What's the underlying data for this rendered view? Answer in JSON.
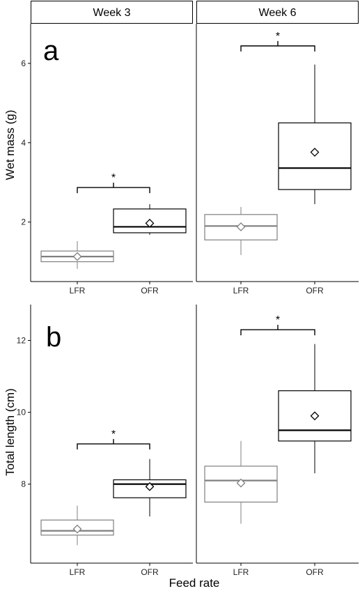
{
  "chart_data": [
    {
      "type": "box",
      "panel_label": "a",
      "ylabel": "Wet mass (g)",
      "xlabel": "",
      "ylim": [
        0.5,
        7.0
      ],
      "yticks": [
        2,
        4,
        6
      ],
      "facets": [
        {
          "strip": "Week 3",
          "categories": [
            "LFR",
            "OFR"
          ],
          "boxes": [
            {
              "category": "LFR",
              "color": "#7f7f7f",
              "min": 0.82,
              "q1": 1.0,
              "median": 1.13,
              "q3": 1.27,
              "max": 1.52,
              "mean": 1.13
            },
            {
              "category": "OFR",
              "color": "#000000",
              "min": 1.68,
              "q1": 1.73,
              "median": 1.88,
              "q3": 2.33,
              "max": 2.45,
              "mean": 1.97
            }
          ],
          "significance": {
            "label": "*",
            "y": 2.87
          }
        },
        {
          "strip": "Week 6",
          "categories": [
            "LFR",
            "OFR"
          ],
          "boxes": [
            {
              "category": "LFR",
              "color": "#7f7f7f",
              "min": 1.17,
              "q1": 1.55,
              "median": 1.9,
              "q3": 2.19,
              "max": 2.38,
              "mean": 1.88
            },
            {
              "category": "OFR",
              "color": "#000000",
              "min": 2.45,
              "q1": 2.82,
              "median": 3.36,
              "q3": 4.5,
              "max": 5.97,
              "mean": 3.76
            }
          ],
          "significance": {
            "label": "*",
            "y": 6.44
          }
        }
      ]
    },
    {
      "type": "box",
      "panel_label": "b",
      "ylabel": "Total length (cm)",
      "xlabel": "Feed rate",
      "ylim": [
        5.8,
        13.0
      ],
      "yticks": [
        8,
        10,
        12
      ],
      "facets": [
        {
          "strip": "",
          "categories": [
            "LFR",
            "OFR"
          ],
          "boxes": [
            {
              "category": "LFR",
              "color": "#7f7f7f",
              "min": 6.3,
              "q1": 6.58,
              "median": 6.7,
              "q3": 7.0,
              "max": 7.4,
              "mean": 6.75
            },
            {
              "category": "OFR",
              "color": "#000000",
              "min": 7.1,
              "q1": 7.62,
              "median": 8.0,
              "q3": 8.12,
              "max": 8.7,
              "mean": 7.93
            }
          ],
          "significance": {
            "label": "*",
            "y": 9.12
          }
        },
        {
          "strip": "",
          "categories": [
            "LFR",
            "OFR"
          ],
          "boxes": [
            {
              "category": "LFR",
              "color": "#7f7f7f",
              "min": 6.9,
              "q1": 7.5,
              "median": 8.1,
              "q3": 8.5,
              "max": 9.2,
              "mean": 8.03
            },
            {
              "category": "OFR",
              "color": "#000000",
              "min": 8.3,
              "q1": 9.2,
              "median": 9.5,
              "q3": 10.6,
              "max": 11.9,
              "mean": 9.9
            }
          ],
          "significance": {
            "label": "*",
            "y": 12.3
          }
        }
      ]
    }
  ]
}
